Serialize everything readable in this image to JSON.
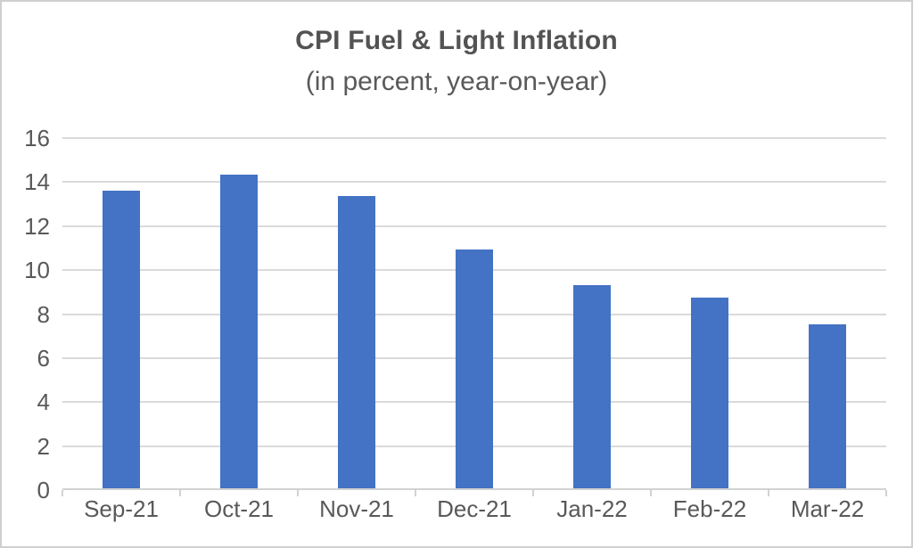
{
  "chart_data": {
    "type": "bar",
    "title": "CPI Fuel & Light Inflation",
    "subtitle": "(in percent, year-on-year)",
    "categories": [
      "Sep-21",
      "Oct-21",
      "Nov-21",
      "Dec-21",
      "Jan-22",
      "Feb-22",
      "Mar-22"
    ],
    "values": [
      13.63,
      14.35,
      13.35,
      10.95,
      9.32,
      8.73,
      7.52
    ],
    "xlabel": "",
    "ylabel": "",
    "ylim": [
      0,
      16
    ],
    "yticks": [
      0,
      2,
      4,
      6,
      8,
      10,
      12,
      14,
      16
    ],
    "grid": true,
    "legend_position": "none",
    "colors": {
      "bar": "#4472c4",
      "gridline": "#dadada",
      "axis": "#d2d2d2",
      "tick_label": "#595959",
      "title": "#535353",
      "subtitle": "#595959",
      "canvas_border": "#cfcfcf",
      "background": "#ffffff"
    }
  }
}
